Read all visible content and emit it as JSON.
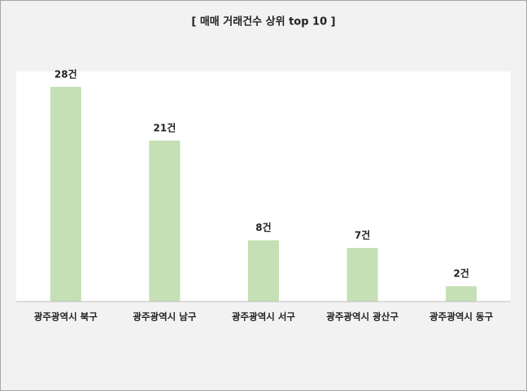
{
  "chart_data": {
    "type": "bar",
    "title": "[ 매매 거래건수 상위 top 10 ]",
    "categories": [
      "광주광역시 북구",
      "광주광역시 남구",
      "광주광역시 서구",
      "광주광역시 광산구",
      "광주광역시 동구"
    ],
    "values": [
      28,
      21,
      8,
      7,
      2
    ],
    "value_labels": [
      "28건",
      "21건",
      "8건",
      "7건",
      "2건"
    ],
    "color": "#c5e0b4",
    "ylim": [
      0,
      30
    ],
    "grid": false
  }
}
